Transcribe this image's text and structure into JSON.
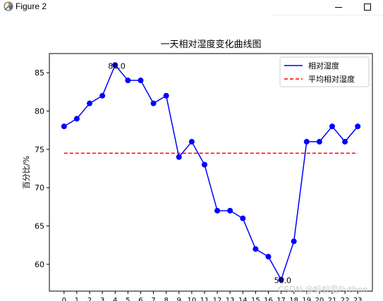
{
  "window": {
    "title": "Figure 2",
    "icon": "matplotlib-figure-icon",
    "minimize_icon": "minimize-icon",
    "maximize_icon": "maximize-icon"
  },
  "watermark": "CSDN @蚂蚁爱Python",
  "chart_data": {
    "type": "line",
    "title": "一天相对湿度变化曲线图",
    "xlabel": "",
    "ylabel": "百分比/%",
    "x": [
      0,
      1,
      2,
      3,
      4,
      5,
      6,
      7,
      8,
      9,
      10,
      11,
      12,
      13,
      14,
      15,
      16,
      17,
      18,
      19,
      20,
      21,
      22,
      23
    ],
    "xticks": [
      "0",
      "1",
      "2",
      "3",
      "4",
      "5",
      "6",
      "7",
      "8",
      "9",
      "10",
      "11",
      "12",
      "13",
      "14",
      "15",
      "16",
      "17",
      "18",
      "19",
      "20",
      "21",
      "22",
      "23"
    ],
    "ylim": [
      56.5,
      87.5
    ],
    "yticks": [
      60,
      65,
      70,
      75,
      80,
      85
    ],
    "series": [
      {
        "name": "相对湿度",
        "color": "#0000ff",
        "style": "solid",
        "marker": "circle",
        "values": [
          78,
          79,
          81,
          82,
          86,
          84,
          84,
          81,
          82,
          74,
          76,
          73,
          67,
          67,
          66,
          62,
          61,
          58,
          63,
          76,
          76,
          78,
          76,
          78
        ]
      },
      {
        "name": "平均相对湿度",
        "color": "#ff0000",
        "style": "dashed",
        "values": [
          74.5,
          74.5,
          74.5,
          74.5,
          74.5,
          74.5,
          74.5,
          74.5,
          74.5,
          74.5,
          74.5,
          74.5,
          74.5,
          74.5,
          74.5,
          74.5,
          74.5,
          74.5,
          74.5,
          74.5,
          74.5,
          74.5,
          74.5,
          74.5
        ]
      }
    ],
    "annotations": [
      {
        "x": 4,
        "y": 86,
        "text": "86.0"
      },
      {
        "x": 17,
        "y": 58,
        "text": "58.0"
      }
    ],
    "legend": "top-right",
    "grid": false
  }
}
